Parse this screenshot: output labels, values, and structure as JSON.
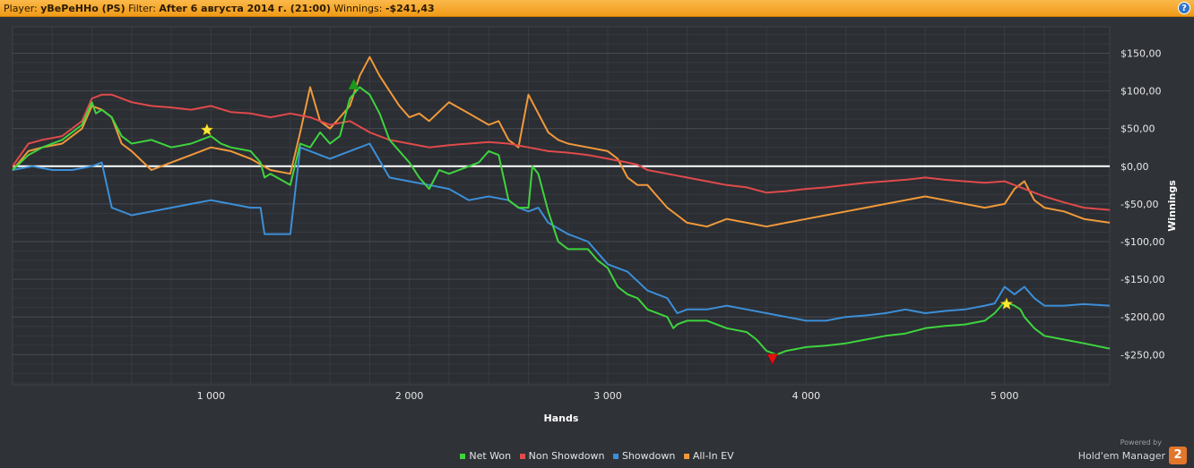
{
  "header": {
    "player_label": "Player:",
    "player_value": "yBePeHHo (PS)",
    "filter_label": "Filter:",
    "filter_value": "After 6 августа 2014 г. (21:00)",
    "winnings_label": "Winnings:",
    "winnings_value": "-$241,43",
    "help_icon": "?"
  },
  "branding": {
    "powered_by": "Powered by",
    "product": "Hold'em Manager",
    "logo_text": "2"
  },
  "chart_data": {
    "type": "line",
    "xlabel": "Hands",
    "ylabel": "Winnings",
    "xlim": [
      0,
      5530
    ],
    "ylim": [
      -290,
      185
    ],
    "x_ticks": [
      1000,
      2000,
      3000,
      4000,
      5000
    ],
    "x_tick_labels": [
      "1 000",
      "2 000",
      "3 000",
      "4 000",
      "5 000"
    ],
    "y_ticks": [
      150,
      100,
      50,
      0,
      -50,
      -100,
      -150,
      -200,
      -250
    ],
    "y_tick_labels": [
      "$150,00",
      "$100,00",
      "$50,00",
      "$0,00",
      "-$50,00",
      "-$100,00",
      "-$150,00",
      "-$200,00",
      "-$250,00"
    ],
    "legend_position": "bottom",
    "grid": true,
    "series": [
      {
        "name": "Net Won",
        "color": "#3ed43e",
        "x": [
          0,
          80,
          150,
          250,
          350,
          400,
          420,
          450,
          500,
          550,
          600,
          700,
          800,
          900,
          1000,
          1050,
          1100,
          1200,
          1250,
          1270,
          1300,
          1400,
          1450,
          1500,
          1550,
          1600,
          1650,
          1700,
          1750,
          1800,
          1850,
          1900,
          2000,
          2050,
          2100,
          2150,
          2200,
          2300,
          2350,
          2400,
          2450,
          2500,
          2550,
          2600,
          2620,
          2650,
          2700,
          2750,
          2800,
          2900,
          2950,
          3000,
          3050,
          3100,
          3150,
          3200,
          3300,
          3330,
          3350,
          3400,
          3500,
          3600,
          3700,
          3750,
          3800,
          3850,
          3900,
          4000,
          4100,
          4200,
          4300,
          4400,
          4500,
          4600,
          4700,
          4800,
          4900,
          4950,
          5000,
          5050,
          5080,
          5100,
          5150,
          5200,
          5300,
          5400,
          5530
        ],
        "values": [
          -5,
          15,
          25,
          35,
          55,
          85,
          70,
          75,
          65,
          40,
          30,
          35,
          25,
          30,
          40,
          30,
          25,
          20,
          5,
          -15,
          -10,
          -25,
          30,
          25,
          45,
          30,
          40,
          90,
          105,
          95,
          70,
          35,
          5,
          -15,
          -30,
          -5,
          -10,
          0,
          5,
          20,
          15,
          -45,
          -55,
          -55,
          0,
          -10,
          -60,
          -100,
          -110,
          -110,
          -125,
          -135,
          -160,
          -170,
          -175,
          -190,
          -200,
          -215,
          -210,
          -205,
          -205,
          -215,
          -220,
          -230,
          -245,
          -250,
          -245,
          -240,
          -238,
          -235,
          -230,
          -225,
          -222,
          -215,
          -212,
          -210,
          -205,
          -195,
          -180,
          -185,
          -190,
          -200,
          -215,
          -225,
          -230,
          -235,
          -242
        ]
      },
      {
        "name": "Non Showdown",
        "color": "#e04a4a",
        "x": [
          0,
          80,
          150,
          250,
          350,
          400,
          450,
          500,
          600,
          700,
          800,
          900,
          1000,
          1100,
          1200,
          1300,
          1400,
          1500,
          1600,
          1700,
          1800,
          1900,
          2000,
          2100,
          2200,
          2300,
          2400,
          2500,
          2600,
          2700,
          2800,
          2900,
          3000,
          3100,
          3150,
          3200,
          3300,
          3400,
          3500,
          3600,
          3700,
          3800,
          3900,
          4000,
          4100,
          4200,
          4300,
          4400,
          4500,
          4600,
          4700,
          4800,
          4900,
          5000,
          5100,
          5200,
          5300,
          5400,
          5530
        ],
        "values": [
          0,
          30,
          35,
          40,
          60,
          90,
          95,
          95,
          85,
          80,
          78,
          75,
          80,
          72,
          70,
          65,
          70,
          65,
          55,
          60,
          45,
          35,
          30,
          25,
          28,
          30,
          32,
          30,
          25,
          20,
          18,
          15,
          10,
          5,
          2,
          -5,
          -10,
          -15,
          -20,
          -25,
          -28,
          -35,
          -33,
          -30,
          -28,
          -25,
          -22,
          -20,
          -18,
          -15,
          -18,
          -20,
          -22,
          -20,
          -30,
          -40,
          -48,
          -55,
          -58
        ]
      },
      {
        "name": "Showdown",
        "color": "#3c8fd8",
        "x": [
          0,
          100,
          200,
          300,
          400,
          450,
          500,
          600,
          700,
          800,
          900,
          1000,
          1100,
          1200,
          1250,
          1270,
          1300,
          1400,
          1450,
          1500,
          1600,
          1700,
          1800,
          1900,
          2000,
          2100,
          2200,
          2300,
          2400,
          2500,
          2550,
          2600,
          2650,
          2700,
          2800,
          2900,
          3000,
          3100,
          3200,
          3300,
          3350,
          3400,
          3500,
          3600,
          3700,
          3800,
          3900,
          4000,
          4100,
          4200,
          4300,
          4400,
          4500,
          4600,
          4700,
          4800,
          4900,
          4950,
          5000,
          5050,
          5100,
          5150,
          5200,
          5300,
          5400,
          5530
        ],
        "values": [
          -5,
          0,
          -5,
          -5,
          0,
          5,
          -55,
          -65,
          -60,
          -55,
          -50,
          -45,
          -50,
          -55,
          -55,
          -90,
          -90,
          -90,
          25,
          20,
          10,
          20,
          30,
          -15,
          -20,
          -25,
          -30,
          -45,
          -40,
          -45,
          -55,
          -60,
          -55,
          -75,
          -90,
          -100,
          -130,
          -140,
          -165,
          -175,
          -195,
          -190,
          -190,
          -185,
          -190,
          -195,
          -200,
          -205,
          -205,
          -200,
          -198,
          -195,
          -190,
          -195,
          -192,
          -190,
          -185,
          -182,
          -160,
          -170,
          -160,
          -175,
          -185,
          -185,
          -183,
          -185
        ]
      },
      {
        "name": "All-In EV",
        "color": "#f0993a",
        "x": [
          0,
          80,
          150,
          250,
          350,
          400,
          450,
          500,
          550,
          600,
          700,
          800,
          900,
          1000,
          1100,
          1200,
          1300,
          1400,
          1450,
          1500,
          1550,
          1600,
          1650,
          1700,
          1750,
          1800,
          1850,
          1900,
          1950,
          2000,
          2050,
          2100,
          2200,
          2300,
          2400,
          2450,
          2500,
          2550,
          2600,
          2650,
          2700,
          2750,
          2800,
          2900,
          3000,
          3050,
          3100,
          3150,
          3200,
          3250,
          3300,
          3350,
          3400,
          3500,
          3600,
          3700,
          3800,
          3900,
          4000,
          4100,
          4200,
          4300,
          4400,
          4500,
          4600,
          4700,
          4800,
          4900,
          5000,
          5050,
          5100,
          5150,
          5200,
          5300,
          5400,
          5530
        ],
        "values": [
          -5,
          20,
          25,
          30,
          50,
          80,
          75,
          65,
          30,
          20,
          -5,
          5,
          15,
          25,
          20,
          10,
          -5,
          -10,
          45,
          105,
          60,
          50,
          65,
          80,
          120,
          145,
          120,
          100,
          80,
          65,
          70,
          60,
          85,
          70,
          55,
          60,
          35,
          25,
          95,
          70,
          45,
          35,
          30,
          25,
          20,
          10,
          -15,
          -25,
          -25,
          -40,
          -55,
          -65,
          -75,
          -80,
          -70,
          -75,
          -80,
          -75,
          -70,
          -65,
          -60,
          -55,
          -50,
          -45,
          -40,
          -45,
          -50,
          -55,
          -50,
          -30,
          -20,
          -45,
          -55,
          -60,
          -70,
          -75
        ]
      }
    ],
    "markers": [
      {
        "series": "Net Won",
        "x": 980,
        "y": 48,
        "shape": "star",
        "color": "#ffe83a"
      },
      {
        "series": "Net Won",
        "x": 1720,
        "y": 108,
        "shape": "triangle-up",
        "color": "#1a9a1a"
      },
      {
        "series": "Net Won",
        "x": 3830,
        "y": -255,
        "shape": "triangle-down",
        "color": "#e01010"
      },
      {
        "series": "Net Won",
        "x": 5010,
        "y": -183,
        "shape": "star",
        "color": "#ffe83a"
      }
    ],
    "zero_line_color": "#ffffff"
  },
  "legend": [
    {
      "label": "Net Won",
      "color": "#3ed43e"
    },
    {
      "label": "Non Showdown",
      "color": "#e04a4a"
    },
    {
      "label": "Showdown",
      "color": "#3c8fd8"
    },
    {
      "label": "All-In EV",
      "color": "#f0993a"
    }
  ]
}
